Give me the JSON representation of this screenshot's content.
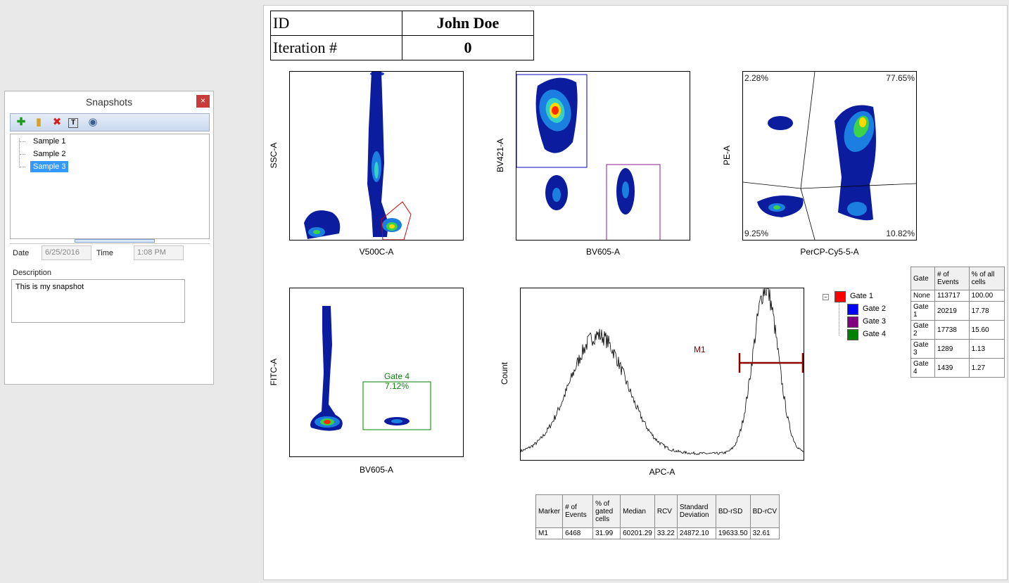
{
  "snapshots_panel": {
    "title": "Snapshots",
    "close": "×",
    "toolbar": [
      {
        "name": "add-icon",
        "glyph": "✚",
        "color": "#1e9c1e"
      },
      {
        "name": "open-icon",
        "glyph": "▮",
        "color": "#d7a12b"
      },
      {
        "name": "delete-icon",
        "glyph": "✖",
        "color": "#d32020"
      },
      {
        "name": "text-icon",
        "glyph": "T",
        "color": "#333333"
      },
      {
        "name": "camera-icon",
        "glyph": "◉",
        "color": "#3a5d8f"
      }
    ],
    "items": [
      "Sample 1",
      "Sample 2",
      "Sample 3"
    ],
    "selected_index": 2,
    "date_label": "Date",
    "date_value": "6/25/2016",
    "time_label": "Time",
    "time_value": "1:08 PM",
    "description_label": "Description",
    "description_value": "This is my snapshot"
  },
  "report": {
    "id_label": "ID",
    "id_value": "John Doe",
    "iteration_label": "Iteration #",
    "iteration_value": "0",
    "plots": {
      "plot1": {
        "xlabel": "V500C-A",
        "ylabel": "SSC-A"
      },
      "plot2": {
        "xlabel": "BV605-A",
        "ylabel": "BV421-A"
      },
      "plot3": {
        "xlabel": "PerCP-Cy5-5-A",
        "ylabel": "PE-A",
        "quadrants": {
          "ul": "2.28%",
          "ur": "77.65%",
          "ll": "9.25%",
          "lr": "10.82%"
        }
      },
      "plot4": {
        "xlabel": "BV605-A",
        "ylabel": "FITC-A",
        "gate_name": "Gate 4",
        "gate_pct": "7.12%"
      },
      "plot5": {
        "xlabel": "APC-A",
        "ylabel": "Count",
        "marker": "M1"
      }
    },
    "gate_legend": [
      {
        "name": "Gate 1",
        "color": "#ff0000"
      },
      {
        "name": "Gate 2",
        "color": "#0000ff"
      },
      {
        "name": "Gate 3",
        "color": "#800080"
      },
      {
        "name": "Gate 4",
        "color": "#008000"
      }
    ],
    "gate_table": {
      "headers": [
        "Gate",
        "# of Events",
        "% of all cells"
      ],
      "rows": [
        [
          "None",
          "113717",
          "100.00"
        ],
        [
          "Gate 1",
          "20219",
          "17.78"
        ],
        [
          "Gate 2",
          "17738",
          "15.60"
        ],
        [
          "Gate 3",
          "1289",
          "1.13"
        ],
        [
          "Gate 4",
          "1439",
          "1.27"
        ]
      ]
    },
    "marker_table": {
      "headers": [
        "Marker",
        "# of Events",
        "% of gated cells",
        "Median",
        "RCV",
        "Standard Deviation",
        "BD-rSD",
        "BD-rCV"
      ],
      "rows": [
        [
          "M1",
          "6468",
          "31.99",
          "60201.29",
          "33.22",
          "24872.10",
          "19633.50",
          "32.61"
        ]
      ]
    }
  }
}
